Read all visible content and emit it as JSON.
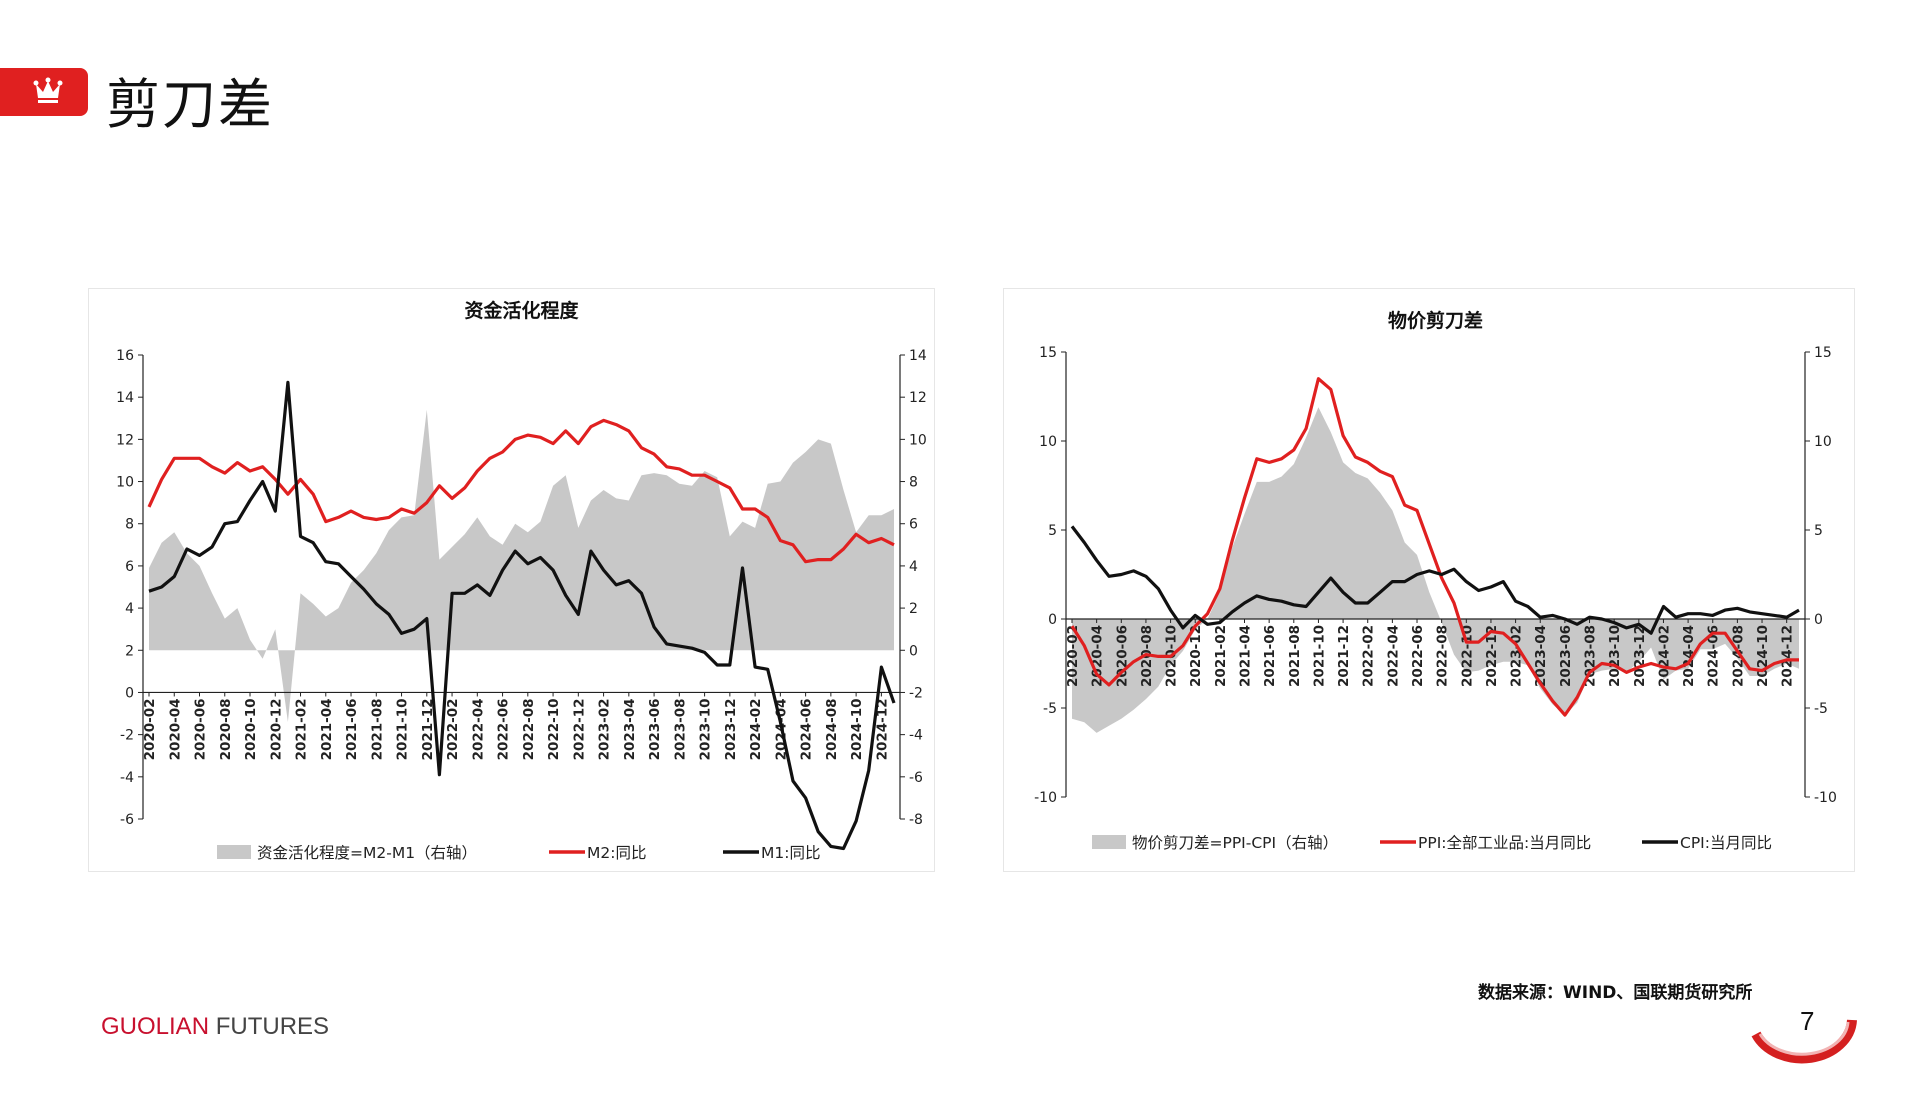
{
  "page": {
    "title": "剪刀差",
    "source": "数据来源：WIND、国联期货研究所",
    "brand_a": "GUOLIAN",
    "brand_b": "FUTURES",
    "page_number": "7"
  },
  "colors": {
    "accent": "#e02020",
    "m2": "#e02020",
    "m1": "#111111",
    "area": "#c8c8c8"
  },
  "chart_data": [
    {
      "type": "line",
      "title": "资金活化程度",
      "x": [
        "2020-02",
        "2020-03",
        "2020-04",
        "2020-05",
        "2020-06",
        "2020-07",
        "2020-08",
        "2020-09",
        "2020-10",
        "2020-11",
        "2020-12",
        "2021-01",
        "2021-02",
        "2021-03",
        "2021-04",
        "2021-05",
        "2021-06",
        "2021-07",
        "2021-08",
        "2021-09",
        "2021-10",
        "2021-11",
        "2021-12",
        "2022-01",
        "2022-02",
        "2022-03",
        "2022-04",
        "2022-05",
        "2022-06",
        "2022-07",
        "2022-08",
        "2022-09",
        "2022-10",
        "2022-11",
        "2022-12",
        "2023-01",
        "2023-02",
        "2023-03",
        "2023-04",
        "2023-05",
        "2023-06",
        "2023-07",
        "2023-08",
        "2023-09",
        "2023-10",
        "2023-11",
        "2023-12",
        "2024-01",
        "2024-02",
        "2024-03",
        "2024-04",
        "2024-05",
        "2024-06",
        "2024-07",
        "2024-08",
        "2024-09",
        "2024-10",
        "2024-11",
        "2024-12",
        "2025-01"
      ],
      "x_tick_labels": [
        "2020-02",
        "2020-04",
        "2020-06",
        "2020-08",
        "2020-10",
        "2020-12",
        "2021-02",
        "2021-04",
        "2021-06",
        "2021-08",
        "2021-10",
        "2021-12",
        "2022-02",
        "2022-04",
        "2022-06",
        "2022-08",
        "2022-10",
        "2022-12",
        "2023-02",
        "2023-04",
        "2023-06",
        "2023-08",
        "2023-10",
        "2023-12",
        "2024-02",
        "2024-04",
        "2024-06",
        "2024-08",
        "2024-10",
        "2024-12"
      ],
      "y_left": {
        "ylim": [
          -6,
          16
        ],
        "ticks": [
          -6,
          -4,
          -2,
          0,
          2,
          4,
          6,
          8,
          10,
          12,
          14,
          16
        ]
      },
      "y_right": {
        "ylim": [
          -8,
          14
        ],
        "ticks": [
          -8,
          -6,
          -4,
          -2,
          0,
          2,
          4,
          6,
          8,
          10,
          12,
          14
        ]
      },
      "series": [
        {
          "name": "资金活化程度=M2-M1（右轴）",
          "axis": "right",
          "kind": "area",
          "values": [
            3.9,
            5.1,
            5.6,
            4.6,
            4.0,
            2.7,
            1.5,
            2.0,
            0.5,
            -0.4,
            1.0,
            -3.4,
            2.7,
            2.2,
            1.6,
            2.0,
            3.2,
            3.8,
            4.6,
            5.7,
            6.3,
            6.4,
            11.4,
            4.3,
            4.9,
            5.5,
            6.3,
            5.4,
            5.0,
            6.0,
            5.6,
            6.1,
            7.8,
            8.3,
            5.8,
            7.1,
            7.6,
            7.2,
            7.1,
            8.3,
            8.4,
            8.3,
            7.9,
            7.8,
            8.5,
            8.2,
            5.4,
            6.1,
            5.8,
            7.9,
            8.0,
            8.9,
            9.4,
            10.0,
            9.8,
            7.6,
            5.6,
            6.4,
            6.4,
            6.7
          ]
        },
        {
          "name": "M2:同比",
          "axis": "left",
          "kind": "line",
          "values": [
            8.8,
            10.1,
            11.1,
            11.1,
            11.1,
            10.7,
            10.4,
            10.9,
            10.5,
            10.7,
            10.1,
            9.4,
            10.1,
            9.4,
            8.1,
            8.3,
            8.6,
            8.3,
            8.2,
            8.3,
            8.7,
            8.5,
            9.0,
            9.8,
            9.2,
            9.7,
            10.5,
            11.1,
            11.4,
            12.0,
            12.2,
            12.1,
            11.8,
            12.4,
            11.8,
            12.6,
            12.9,
            12.7,
            12.4,
            11.6,
            11.3,
            10.7,
            10.6,
            10.3,
            10.3,
            10.0,
            9.7,
            8.7,
            8.7,
            8.3,
            7.2,
            7.0,
            6.2,
            6.3,
            6.3,
            6.8,
            7.5,
            7.1,
            7.3,
            7.0
          ]
        },
        {
          "name": "M1:同比",
          "axis": "left",
          "kind": "line",
          "values": [
            4.8,
            5.0,
            5.5,
            6.8,
            6.5,
            6.9,
            8.0,
            8.1,
            9.1,
            10.0,
            8.6,
            14.7,
            7.4,
            7.1,
            6.2,
            6.1,
            5.5,
            4.9,
            4.2,
            3.7,
            2.8,
            3.0,
            3.5,
            -3.9,
            4.7,
            4.7,
            5.1,
            4.6,
            5.8,
            6.7,
            6.1,
            6.4,
            5.8,
            4.6,
            3.7,
            6.7,
            5.8,
            5.1,
            5.3,
            4.7,
            3.1,
            2.3,
            2.2,
            2.1,
            1.9,
            1.3,
            1.3,
            5.9,
            1.2,
            1.1,
            -1.4,
            -4.2,
            -5.0,
            -6.6,
            -7.3,
            -7.4,
            -6.1,
            -3.7,
            1.2,
            -0.5
          ]
        }
      ]
    },
    {
      "type": "line",
      "title": "物价剪刀差",
      "x": [
        "2020-02",
        "2020-03",
        "2020-04",
        "2020-05",
        "2020-06",
        "2020-07",
        "2020-08",
        "2020-09",
        "2020-10",
        "2020-11",
        "2020-12",
        "2021-01",
        "2021-02",
        "2021-03",
        "2021-04",
        "2021-05",
        "2021-06",
        "2021-07",
        "2021-08",
        "2021-09",
        "2021-10",
        "2021-11",
        "2021-12",
        "2022-01",
        "2022-02",
        "2022-03",
        "2022-04",
        "2022-05",
        "2022-06",
        "2022-07",
        "2022-08",
        "2022-09",
        "2022-10",
        "2022-11",
        "2022-12",
        "2023-01",
        "2023-02",
        "2023-03",
        "2023-04",
        "2023-05",
        "2023-06",
        "2023-07",
        "2023-08",
        "2023-09",
        "2023-10",
        "2023-11",
        "2023-12",
        "2024-01",
        "2024-02",
        "2024-03",
        "2024-04",
        "2024-05",
        "2024-06",
        "2024-07",
        "2024-08",
        "2024-09",
        "2024-10",
        "2024-11",
        "2024-12",
        "2025-01"
      ],
      "x_tick_labels": [
        "2020-02",
        "2020-04",
        "2020-06",
        "2020-08",
        "2020-10",
        "2020-12",
        "2021-02",
        "2021-04",
        "2021-06",
        "2021-08",
        "2021-10",
        "2021-12",
        "2022-02",
        "2022-04",
        "2022-06",
        "2022-08",
        "2022-10",
        "2022-12",
        "2023-02",
        "2023-04",
        "2023-06",
        "2023-08",
        "2023-10",
        "2023-12",
        "2024-02",
        "2024-04",
        "2024-06",
        "2024-08",
        "2024-10",
        "2024-12"
      ],
      "y_left": {
        "ylim": [
          -10,
          15
        ],
        "ticks": [
          -10,
          -5,
          0,
          5,
          10,
          15
        ]
      },
      "y_right": {
        "ylim": [
          -10,
          15
        ],
        "ticks": [
          -10,
          -5,
          0,
          5,
          10,
          15
        ]
      },
      "series": [
        {
          "name": "物价剪刀差=PPI-CPI（右轴）",
          "axis": "right",
          "kind": "area",
          "values": [
            -5.6,
            -5.8,
            -6.4,
            -6.0,
            -5.6,
            -5.1,
            -4.5,
            -3.8,
            -2.6,
            -1.8,
            -0.6,
            0.0,
            1.5,
            4.0,
            5.9,
            7.7,
            7.7,
            8.0,
            8.7,
            10.2,
            11.9,
            10.5,
            8.8,
            8.2,
            7.9,
            7.1,
            6.1,
            4.3,
            3.6,
            1.5,
            -0.2,
            -2.0,
            -3.0,
            -2.9,
            -2.6,
            -2.4,
            -2.4,
            -2.6,
            -3.9,
            -4.8,
            -5.4,
            -4.7,
            -3.1,
            -2.9,
            -2.8,
            -3.0,
            -2.4,
            -1.6,
            -3.4,
            -2.9,
            -2.8,
            -1.7,
            -1.7,
            -1.4,
            -2.2,
            -3.2,
            -3.2,
            -2.8,
            -2.5,
            -2.8
          ]
        },
        {
          "name": "PPI:全部工业品:当月同比",
          "axis": "left",
          "kind": "line",
          "values": [
            -0.4,
            -1.5,
            -3.1,
            -3.7,
            -3.0,
            -2.4,
            -2.0,
            -2.1,
            -2.1,
            -1.5,
            -0.4,
            0.3,
            1.7,
            4.4,
            6.8,
            9.0,
            8.8,
            9.0,
            9.5,
            10.7,
            13.5,
            12.9,
            10.3,
            9.1,
            8.8,
            8.3,
            8.0,
            6.4,
            6.1,
            4.2,
            2.3,
            0.9,
            -1.3,
            -1.3,
            -0.7,
            -0.8,
            -1.4,
            -2.5,
            -3.6,
            -4.6,
            -5.4,
            -4.4,
            -3.0,
            -2.5,
            -2.6,
            -3.0,
            -2.7,
            -2.5,
            -2.7,
            -2.8,
            -2.5,
            -1.4,
            -0.8,
            -0.8,
            -1.8,
            -2.8,
            -2.9,
            -2.5,
            -2.3,
            -2.3
          ]
        },
        {
          "name": "CPI:当月同比",
          "axis": "left",
          "kind": "line",
          "values": [
            5.2,
            4.3,
            3.3,
            2.4,
            2.5,
            2.7,
            2.4,
            1.7,
            0.5,
            -0.5,
            0.2,
            -0.3,
            -0.2,
            0.4,
            0.9,
            1.3,
            1.1,
            1.0,
            0.8,
            0.7,
            1.5,
            2.3,
            1.5,
            0.9,
            0.9,
            1.5,
            2.1,
            2.1,
            2.5,
            2.7,
            2.5,
            2.8,
            2.1,
            1.6,
            1.8,
            2.1,
            1.0,
            0.7,
            0.1,
            0.2,
            0.0,
            -0.3,
            0.1,
            0.0,
            -0.2,
            -0.5,
            -0.3,
            -0.8,
            0.7,
            0.1,
            0.3,
            0.3,
            0.2,
            0.5,
            0.6,
            0.4,
            0.3,
            0.2,
            0.1,
            0.5
          ]
        }
      ]
    }
  ]
}
